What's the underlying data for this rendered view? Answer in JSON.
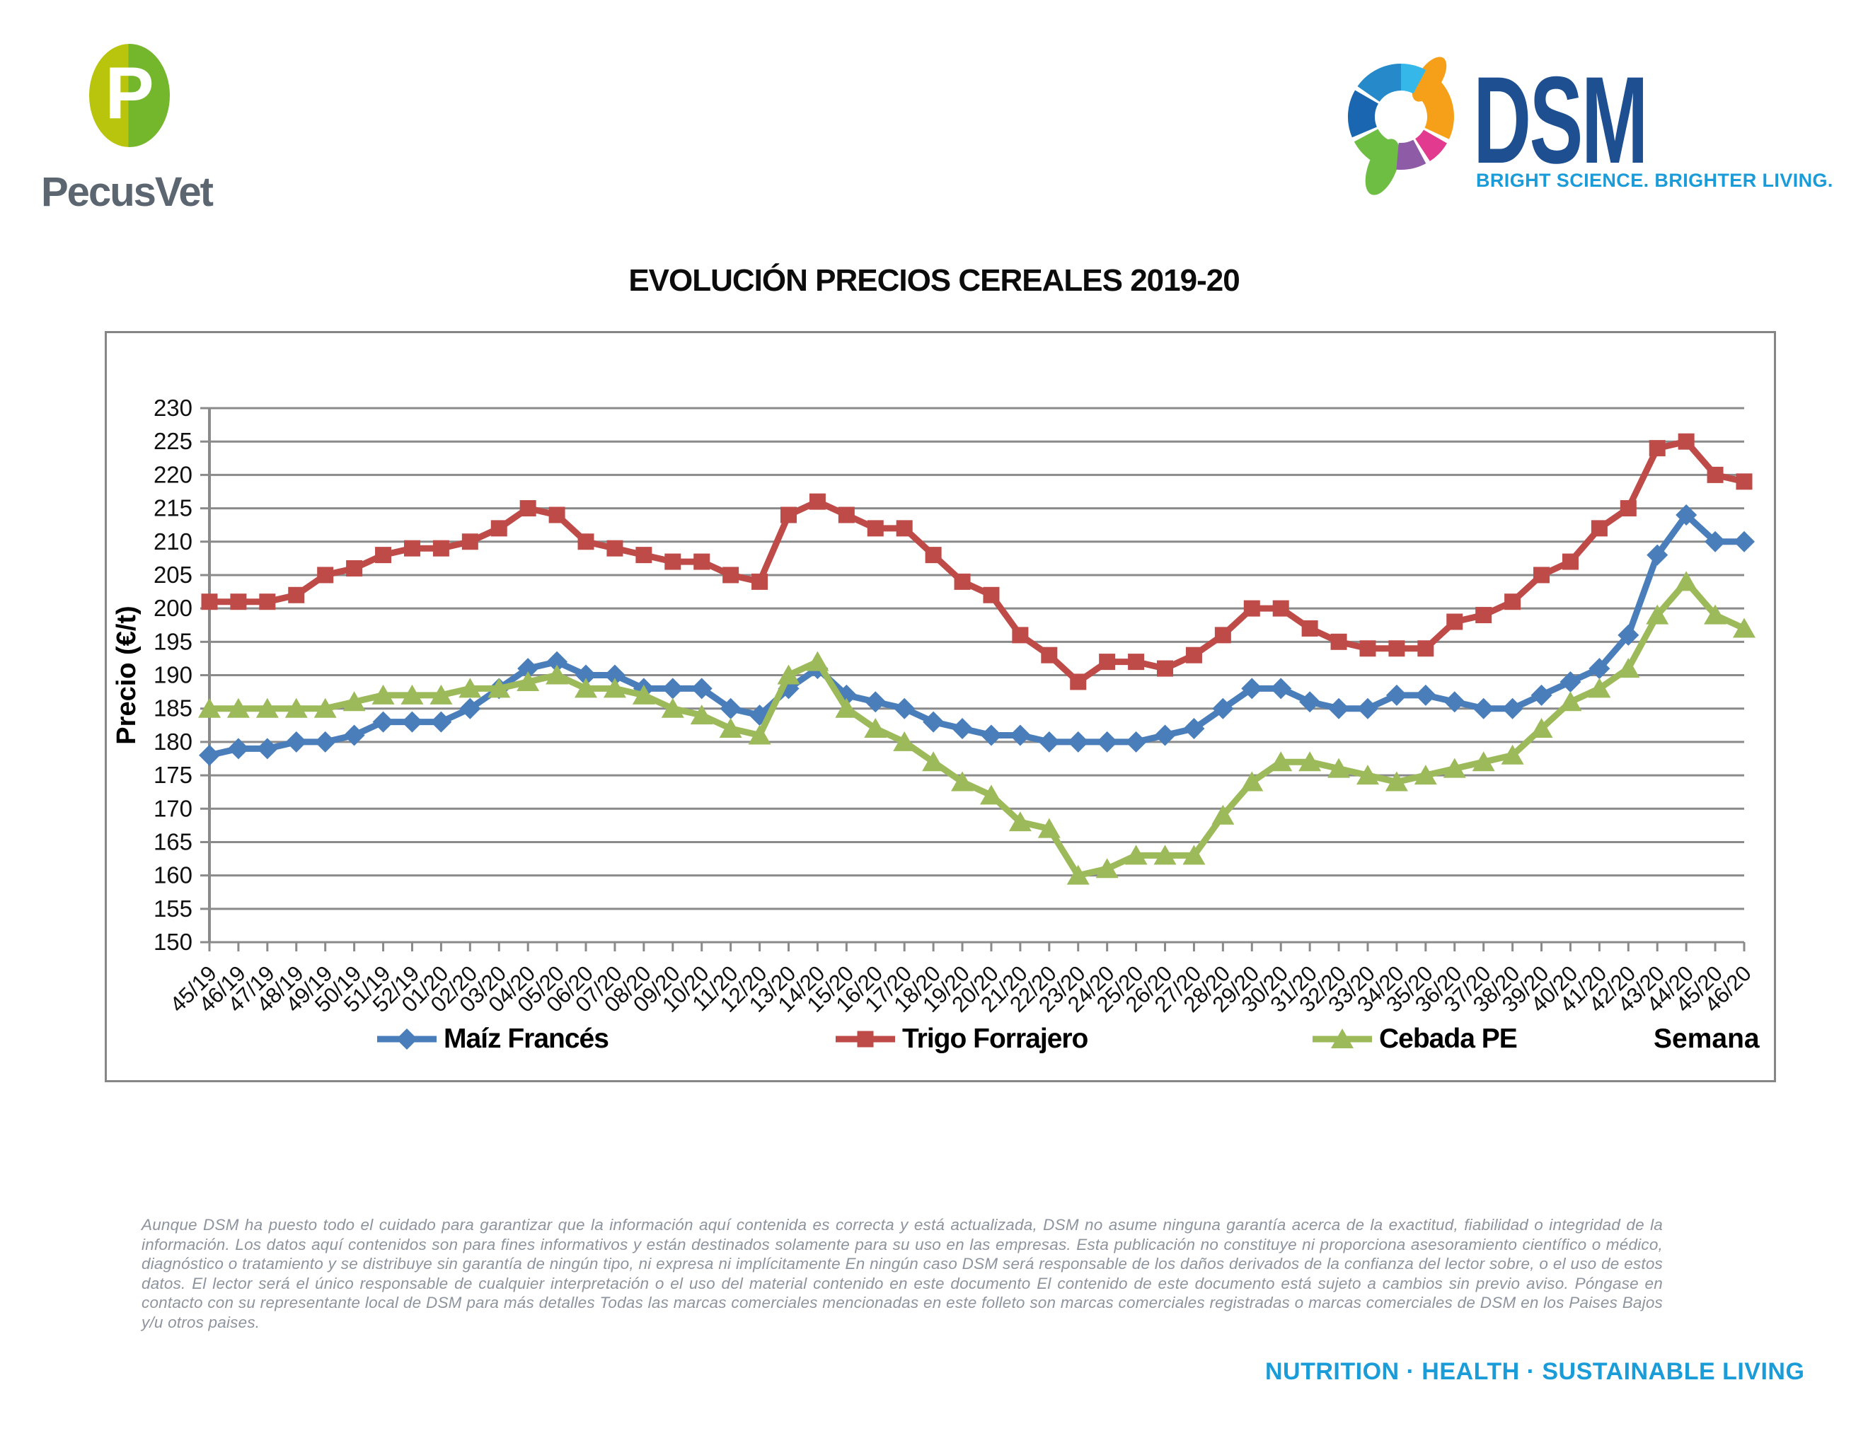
{
  "header": {
    "pecusvet": {
      "name": "PecusVet",
      "monogram": "P",
      "colors": {
        "left_half": "#b9c40d",
        "right_half": "#74b62c",
        "wordmark": "#5b6670"
      }
    },
    "dsm": {
      "name": "DSM",
      "tagline": "BRIGHT SCIENCE. BRIGHTER LIVING.",
      "colors": {
        "wordmark": "#1d4f91",
        "tagline": "#1b9cd8"
      }
    }
  },
  "title": "EVOLUCIÓN PRECIOS CEREALES 2019-20",
  "chart_data": {
    "type": "line",
    "title": "EVOLUCIÓN PRECIOS CEREALES 2019-20",
    "xlabel": "Semana",
    "ylabel": "Precio (€/t)",
    "ylim": [
      150,
      230
    ],
    "ytick_step": 5,
    "grid": true,
    "legend_position": "bottom",
    "grid_color": "#8a8a8a",
    "categories": [
      "45/19",
      "46/19",
      "47/19",
      "48/19",
      "49/19",
      "50/19",
      "51/19",
      "52/19",
      "01/20",
      "02/20",
      "03/20",
      "04/20",
      "05/20",
      "06/20",
      "07/20",
      "08/20",
      "09/20",
      "10/20",
      "11/20",
      "12/20",
      "13/20",
      "14/20",
      "15/20",
      "16/20",
      "17/20",
      "18/20",
      "19/20",
      "20/20",
      "21/20",
      "22/20",
      "23/20",
      "24/20",
      "25/20",
      "26/20",
      "27/20",
      "28/20",
      "29/20",
      "30/20",
      "31/20",
      "32/20",
      "33/20",
      "34/20",
      "35/20",
      "36/20",
      "37/20",
      "38/20",
      "39/20",
      "40/20",
      "41/20",
      "42/20",
      "43/20",
      "44/20",
      "45/20",
      "46/20"
    ],
    "series": [
      {
        "name": "Maíz Francés",
        "color": "#4a7ebb",
        "marker": "diamond",
        "values": [
          178,
          179,
          179,
          180,
          180,
          181,
          183,
          183,
          183,
          185,
          188,
          191,
          192,
          190,
          190,
          188,
          188,
          188,
          185,
          184,
          188,
          191,
          187,
          186,
          185,
          183,
          182,
          181,
          181,
          180,
          180,
          180,
          180,
          181,
          182,
          185,
          188,
          188,
          186,
          185,
          185,
          187,
          187,
          186,
          185,
          185,
          187,
          189,
          191,
          196,
          208,
          214,
          210,
          210
        ]
      },
      {
        "name": "Trigo Forrajero",
        "color": "#bf4b48",
        "marker": "square",
        "values": [
          201,
          201,
          201,
          202,
          205,
          206,
          208,
          209,
          209,
          210,
          212,
          215,
          214,
          210,
          209,
          208,
          207,
          207,
          205,
          204,
          214,
          216,
          214,
          212,
          212,
          208,
          204,
          202,
          196,
          193,
          189,
          192,
          192,
          191,
          193,
          196,
          200,
          200,
          197,
          195,
          194,
          194,
          194,
          198,
          199,
          201,
          205,
          207,
          212,
          215,
          224,
          225,
          220,
          219
        ]
      },
      {
        "name": "Cebada PE",
        "color": "#9cba59",
        "marker": "triangle",
        "values": [
          185,
          185,
          185,
          185,
          185,
          186,
          187,
          187,
          187,
          188,
          188,
          189,
          190,
          188,
          188,
          187,
          185,
          184,
          182,
          181,
          190,
          192,
          185,
          182,
          180,
          177,
          174,
          172,
          168,
          167,
          160,
          161,
          163,
          163,
          163,
          169,
          174,
          177,
          177,
          176,
          175,
          174,
          175,
          176,
          177,
          178,
          182,
          186,
          188,
          191,
          199,
          204,
          199,
          197
        ]
      }
    ]
  },
  "footer": {
    "disclaimer": "Aunque DSM ha puesto todo el cuidado para garantizar que la información aquí contenida es correcta y está actualizada, DSM no asume ninguna garantía acerca de la exactitud, fiabilidad o integridad de la información. Los datos aquí contenidos son para fines informativos y están destinados solamente para su uso en las empresas. Esta publicación no constituye ni proporciona asesoramiento científico o médico, diagnóstico o tratamiento y se distribuye sin garantía de ningún tipo, ni expresa ni implícitamente En ningún caso DSM será responsable de los daños derivados de la confianza del lector sobre, o el uso de estos datos. El lector será el único responsable de cualquier interpretación o el uso del material contenido en este documento El contenido de este documento está sujeto a cambios sin previo aviso. Póngase en contacto con su representante local de DSM para más detalles Todas las marcas comerciales mencionadas en este folleto son marcas comerciales registradas o marcas comerciales de DSM en los Paises Bajos y/u otros paises.",
    "tagline": "NUTRITION · HEALTH · SUSTAINABLE LIVING"
  }
}
